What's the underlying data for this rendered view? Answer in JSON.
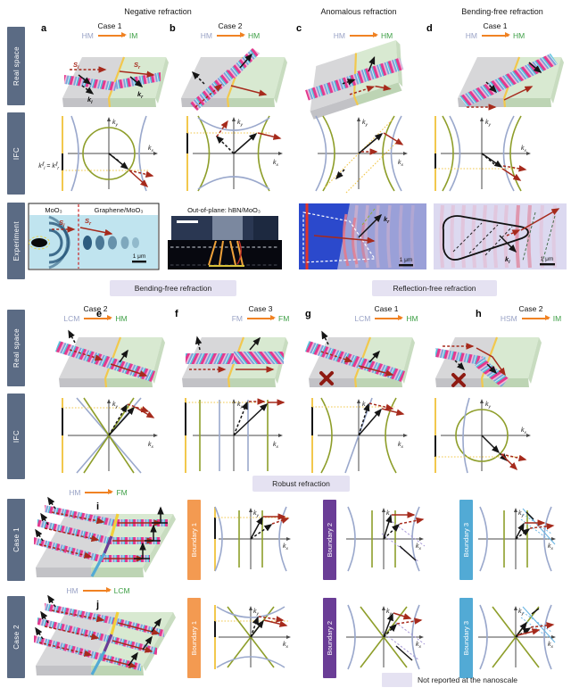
{
  "headers": {
    "negative": "Negative refraction",
    "anomalous": "Anomalous refraction",
    "bending_free": "Bending-free refraction"
  },
  "sidebars": {
    "real_space": "Real space",
    "ifc": "IFC",
    "experiment": "Experiment",
    "real_space2": "Real space",
    "ifc2": "IFC",
    "case1": "Case 1",
    "case2": "Case 2"
  },
  "panels": {
    "a": {
      "letter": "a",
      "case_label": "Case 1",
      "from": "HM",
      "to": "IM"
    },
    "b": {
      "letter": "b",
      "case_label": "Case 2",
      "from": "HM",
      "to": "HM"
    },
    "c": {
      "letter": "c",
      "case_label": "",
      "from": "HM",
      "to": "HM"
    },
    "d": {
      "letter": "d",
      "case_label": "Case 1",
      "from": "HM",
      "to": "HM"
    },
    "e": {
      "letter": "e",
      "case_label": "Case 2",
      "from": "LCM",
      "to": "HM"
    },
    "f": {
      "letter": "f",
      "case_label": "Case 3",
      "from": "FM",
      "to": "FM"
    },
    "g": {
      "letter": "g",
      "case_label": "Case 1",
      "from": "LCM",
      "to": "HM"
    },
    "h": {
      "letter": "h",
      "case_label": "Case 2",
      "from": "HSM",
      "to": "IM"
    },
    "i": {
      "letter": "i",
      "case_label": "",
      "from": "HM",
      "to": "FM"
    },
    "j": {
      "letter": "j",
      "case_label": "",
      "from": "HM",
      "to": "LCM"
    }
  },
  "axis": {
    "k": "k",
    "x": "x",
    "y": "y"
  },
  "kpar": {
    "k1": "k",
    "sup1": "∥",
    "sub1": "i",
    "eq": " = ",
    "k2": "k",
    "sup2": "∥",
    "sub2": "r"
  },
  "sub_labels": {
    "ki": {
      "main": "k",
      "sub": "i"
    },
    "kr": {
      "main": "k",
      "sub": "r"
    },
    "si": {
      "main": "S",
      "sub": "i"
    },
    "sr": {
      "main": "S",
      "sub": "r"
    }
  },
  "experiments": {
    "a": {
      "left_medium": "MoO₃",
      "right_medium": "Graphene/MoO₃",
      "scale_bar": "1 μm"
    },
    "b": {
      "title": "Out-of-plane: hBN/MoO₃"
    },
    "c": {
      "scale_bar": "1 μm"
    },
    "d": {
      "scale_bar": "1 μm"
    }
  },
  "banners": {
    "bending_free": "Bending-free refraction",
    "reflection_free": "Reflection-free refraction",
    "robust": "Robust refraction"
  },
  "boundaries": {
    "b1": "Boundary 1",
    "b2": "Boundary 2",
    "b3": "Boundary 3"
  },
  "legend": {
    "not_reported": "Not reported at the nanoscale"
  },
  "colors": {
    "slate": "#5b6b84",
    "medleft": "#9aa3c6",
    "medright": "#3fa047",
    "orange": "#f08223",
    "banner": "#e5e2f2",
    "b1": "#f39a51",
    "b2": "#6a3d96",
    "b3": "#52aad5",
    "ifcg": "#8e9e2a",
    "ifcb": "#9aa8cc",
    "byellow": "#f2c84d",
    "ared": "#a62a1c",
    "xred": "#8e1a12"
  }
}
